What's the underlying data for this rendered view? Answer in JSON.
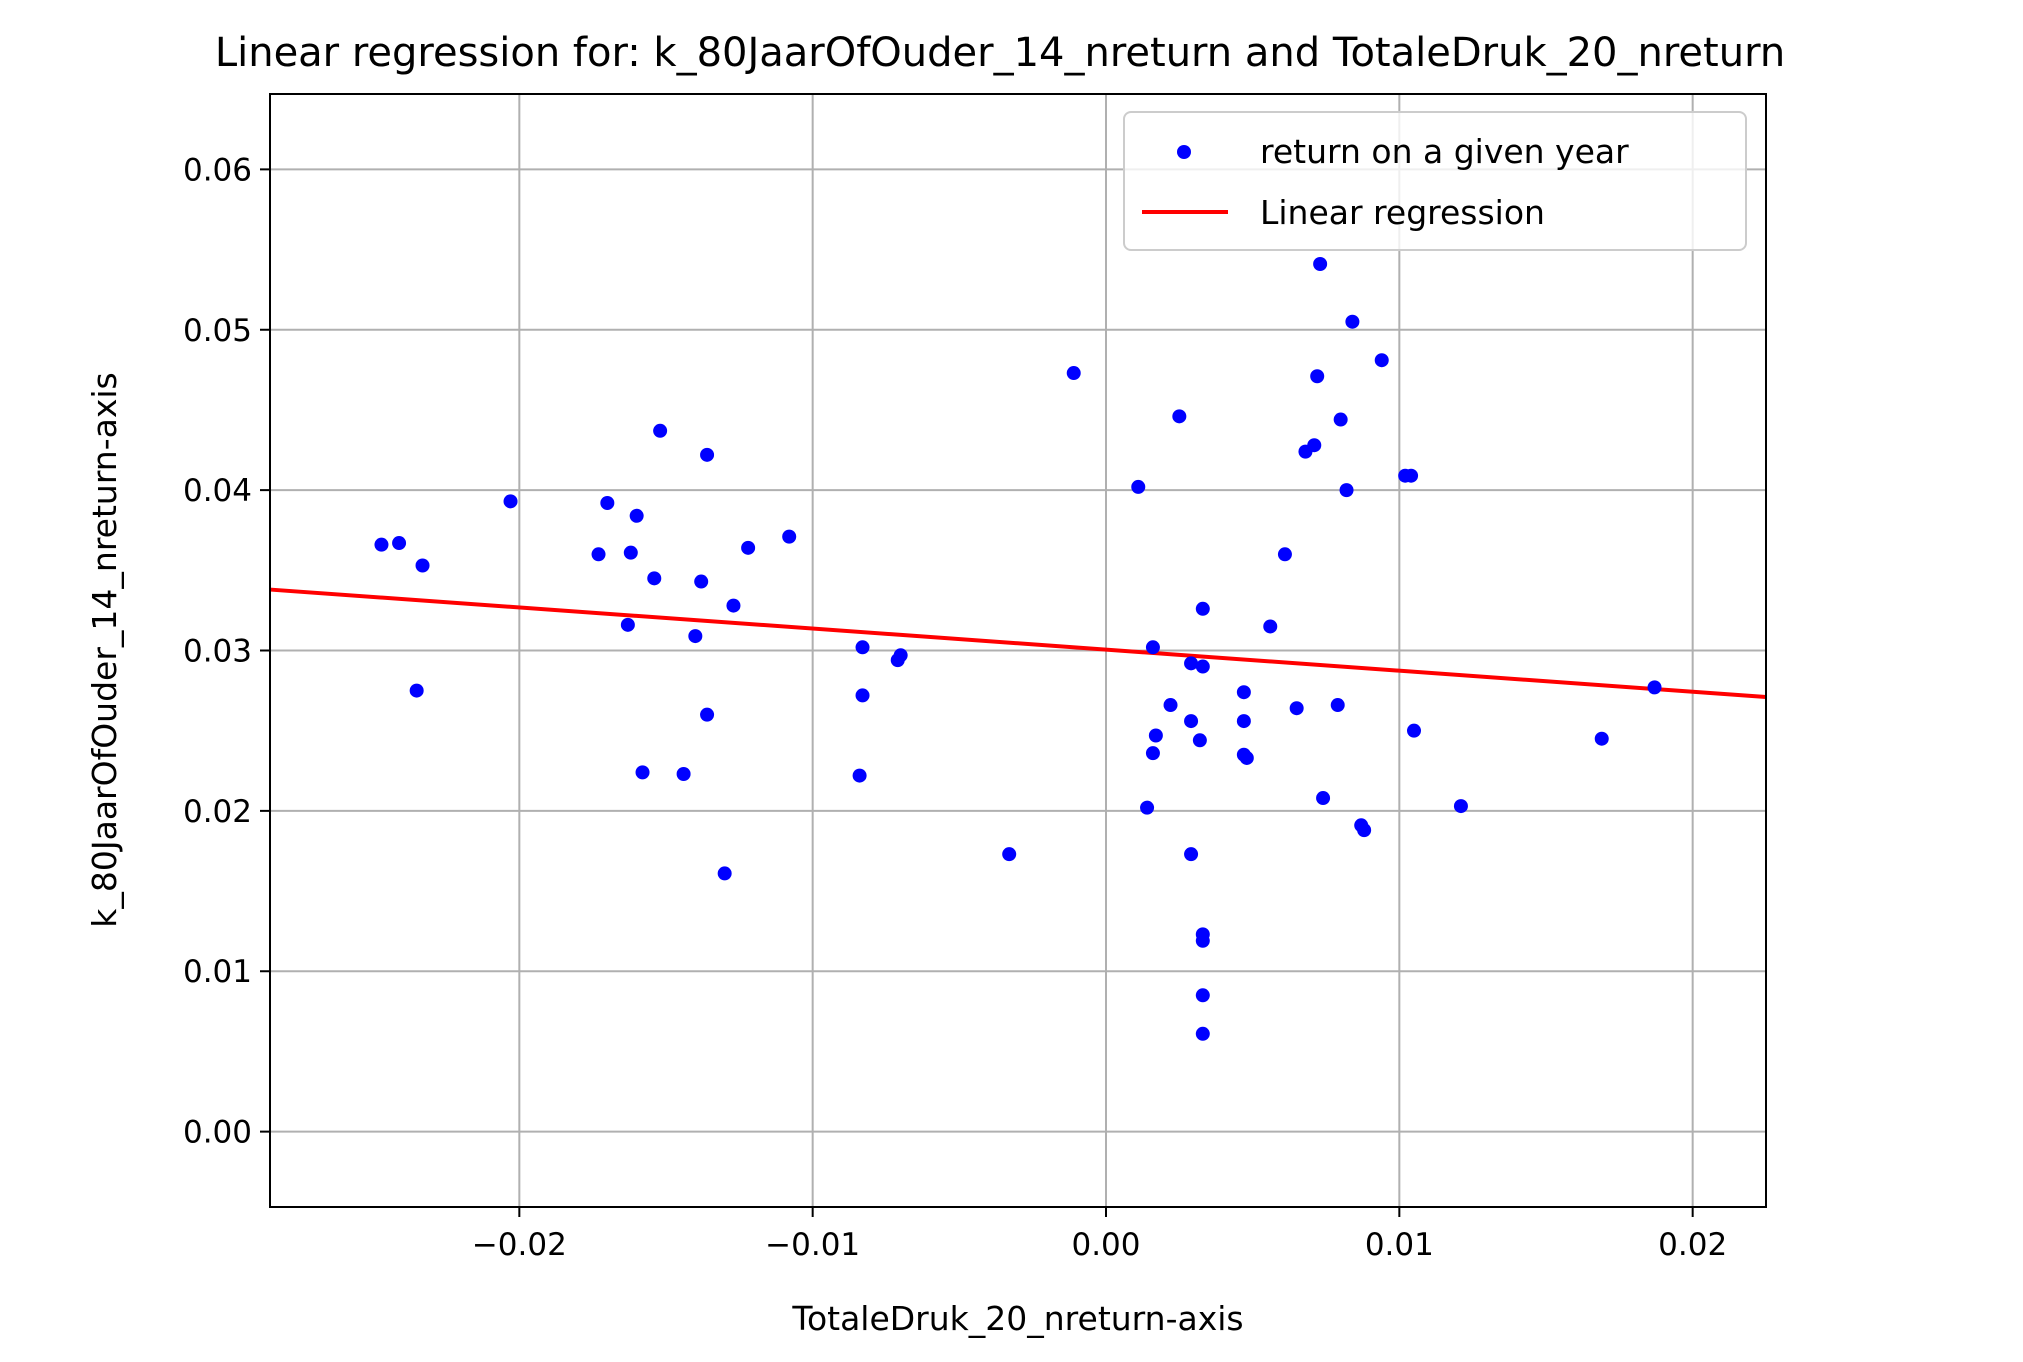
{
  "chart_data": {
    "type": "scatter",
    "title": "Linear regression for: k_80JaarOfOuder_14_nreturn and TotaleDruk_20_nreturn",
    "xlabel": "TotaleDruk_20_nreturn-axis",
    "ylabel": "k_80JaarOfOuder_14_nreturn-axis",
    "xlim": [
      -0.0285,
      0.0225
    ],
    "ylim": [
      -0.0047,
      0.0647
    ],
    "xticks": [
      -0.02,
      -0.01,
      0.0,
      0.01,
      0.02
    ],
    "xtick_labels": [
      "−0.02",
      "−0.01",
      "0.00",
      "0.01",
      "0.02"
    ],
    "yticks": [
      0.0,
      0.01,
      0.02,
      0.03,
      0.04,
      0.05,
      0.06
    ],
    "ytick_labels": [
      "0.00",
      "0.01",
      "0.02",
      "0.03",
      "0.04",
      "0.05",
      "0.06"
    ],
    "grid": true,
    "legend_position": "top-right",
    "series": [
      {
        "name": "return on a given year",
        "kind": "scatter",
        "color": "#0000ff",
        "points": [
          [
            -0.0247,
            0.0366
          ],
          [
            -0.0241,
            0.0367
          ],
          [
            -0.0233,
            0.0353
          ],
          [
            -0.0235,
            0.0275
          ],
          [
            -0.0203,
            0.0393
          ],
          [
            -0.0173,
            0.036
          ],
          [
            -0.017,
            0.0392
          ],
          [
            -0.0163,
            0.0316
          ],
          [
            -0.0162,
            0.0361
          ],
          [
            -0.016,
            0.0384
          ],
          [
            -0.0158,
            0.0224
          ],
          [
            -0.0154,
            0.0345
          ],
          [
            -0.0152,
            0.0437
          ],
          [
            -0.0144,
            0.0223
          ],
          [
            -0.014,
            0.0309
          ],
          [
            -0.0138,
            0.0343
          ],
          [
            -0.0136,
            0.0422
          ],
          [
            -0.0136,
            0.026
          ],
          [
            -0.013,
            0.0161
          ],
          [
            -0.0127,
            0.0328
          ],
          [
            -0.0122,
            0.0364
          ],
          [
            -0.0108,
            0.0371
          ],
          [
            -0.0083,
            0.0302
          ],
          [
            -0.0083,
            0.0272
          ],
          [
            -0.0084,
            0.0222
          ],
          [
            -0.007,
            0.0297
          ],
          [
            -0.0071,
            0.0294
          ],
          [
            -0.0033,
            0.0173
          ],
          [
            -0.0011,
            0.0473
          ],
          [
            0.0011,
            0.0402
          ],
          [
            0.0014,
            0.0202
          ],
          [
            0.0016,
            0.0302
          ],
          [
            0.0016,
            0.0236
          ],
          [
            0.0017,
            0.0247
          ],
          [
            0.0022,
            0.0266
          ],
          [
            0.0025,
            0.0446
          ],
          [
            0.0029,
            0.0292
          ],
          [
            0.0029,
            0.0256
          ],
          [
            0.0029,
            0.0173
          ],
          [
            0.0032,
            0.0244
          ],
          [
            0.0033,
            0.029
          ],
          [
            0.0033,
            0.0326
          ],
          [
            0.0033,
            0.0123
          ],
          [
            0.0033,
            0.0119
          ],
          [
            0.0033,
            0.0085
          ],
          [
            0.0033,
            0.0061
          ],
          [
            0.0047,
            0.0274
          ],
          [
            0.0047,
            0.0256
          ],
          [
            0.0047,
            0.0235
          ],
          [
            0.0048,
            0.0233
          ],
          [
            0.0056,
            0.0315
          ],
          [
            0.0061,
            0.036
          ],
          [
            0.0065,
            0.0264
          ],
          [
            0.0068,
            0.0424
          ],
          [
            0.0071,
            0.0428
          ],
          [
            0.0072,
            0.0471
          ],
          [
            0.0073,
            0.0541
          ],
          [
            0.0074,
            0.0208
          ],
          [
            0.0079,
            0.0266
          ],
          [
            0.008,
            0.0444
          ],
          [
            0.0082,
            0.04
          ],
          [
            0.0084,
            0.0505
          ],
          [
            0.0087,
            0.0191
          ],
          [
            0.0088,
            0.0188
          ],
          [
            0.0094,
            0.0481
          ],
          [
            0.0102,
            0.0409
          ],
          [
            0.0104,
            0.0409
          ],
          [
            0.0105,
            0.025
          ],
          [
            0.0121,
            0.0203
          ],
          [
            0.0169,
            0.0245
          ],
          [
            0.0187,
            0.0277
          ]
        ]
      },
      {
        "name": "Linear regression",
        "kind": "line",
        "color": "#ff0000",
        "x": [
          -0.0285,
          0.0225
        ],
        "y": [
          0.0338,
          0.0271
        ]
      }
    ]
  }
}
